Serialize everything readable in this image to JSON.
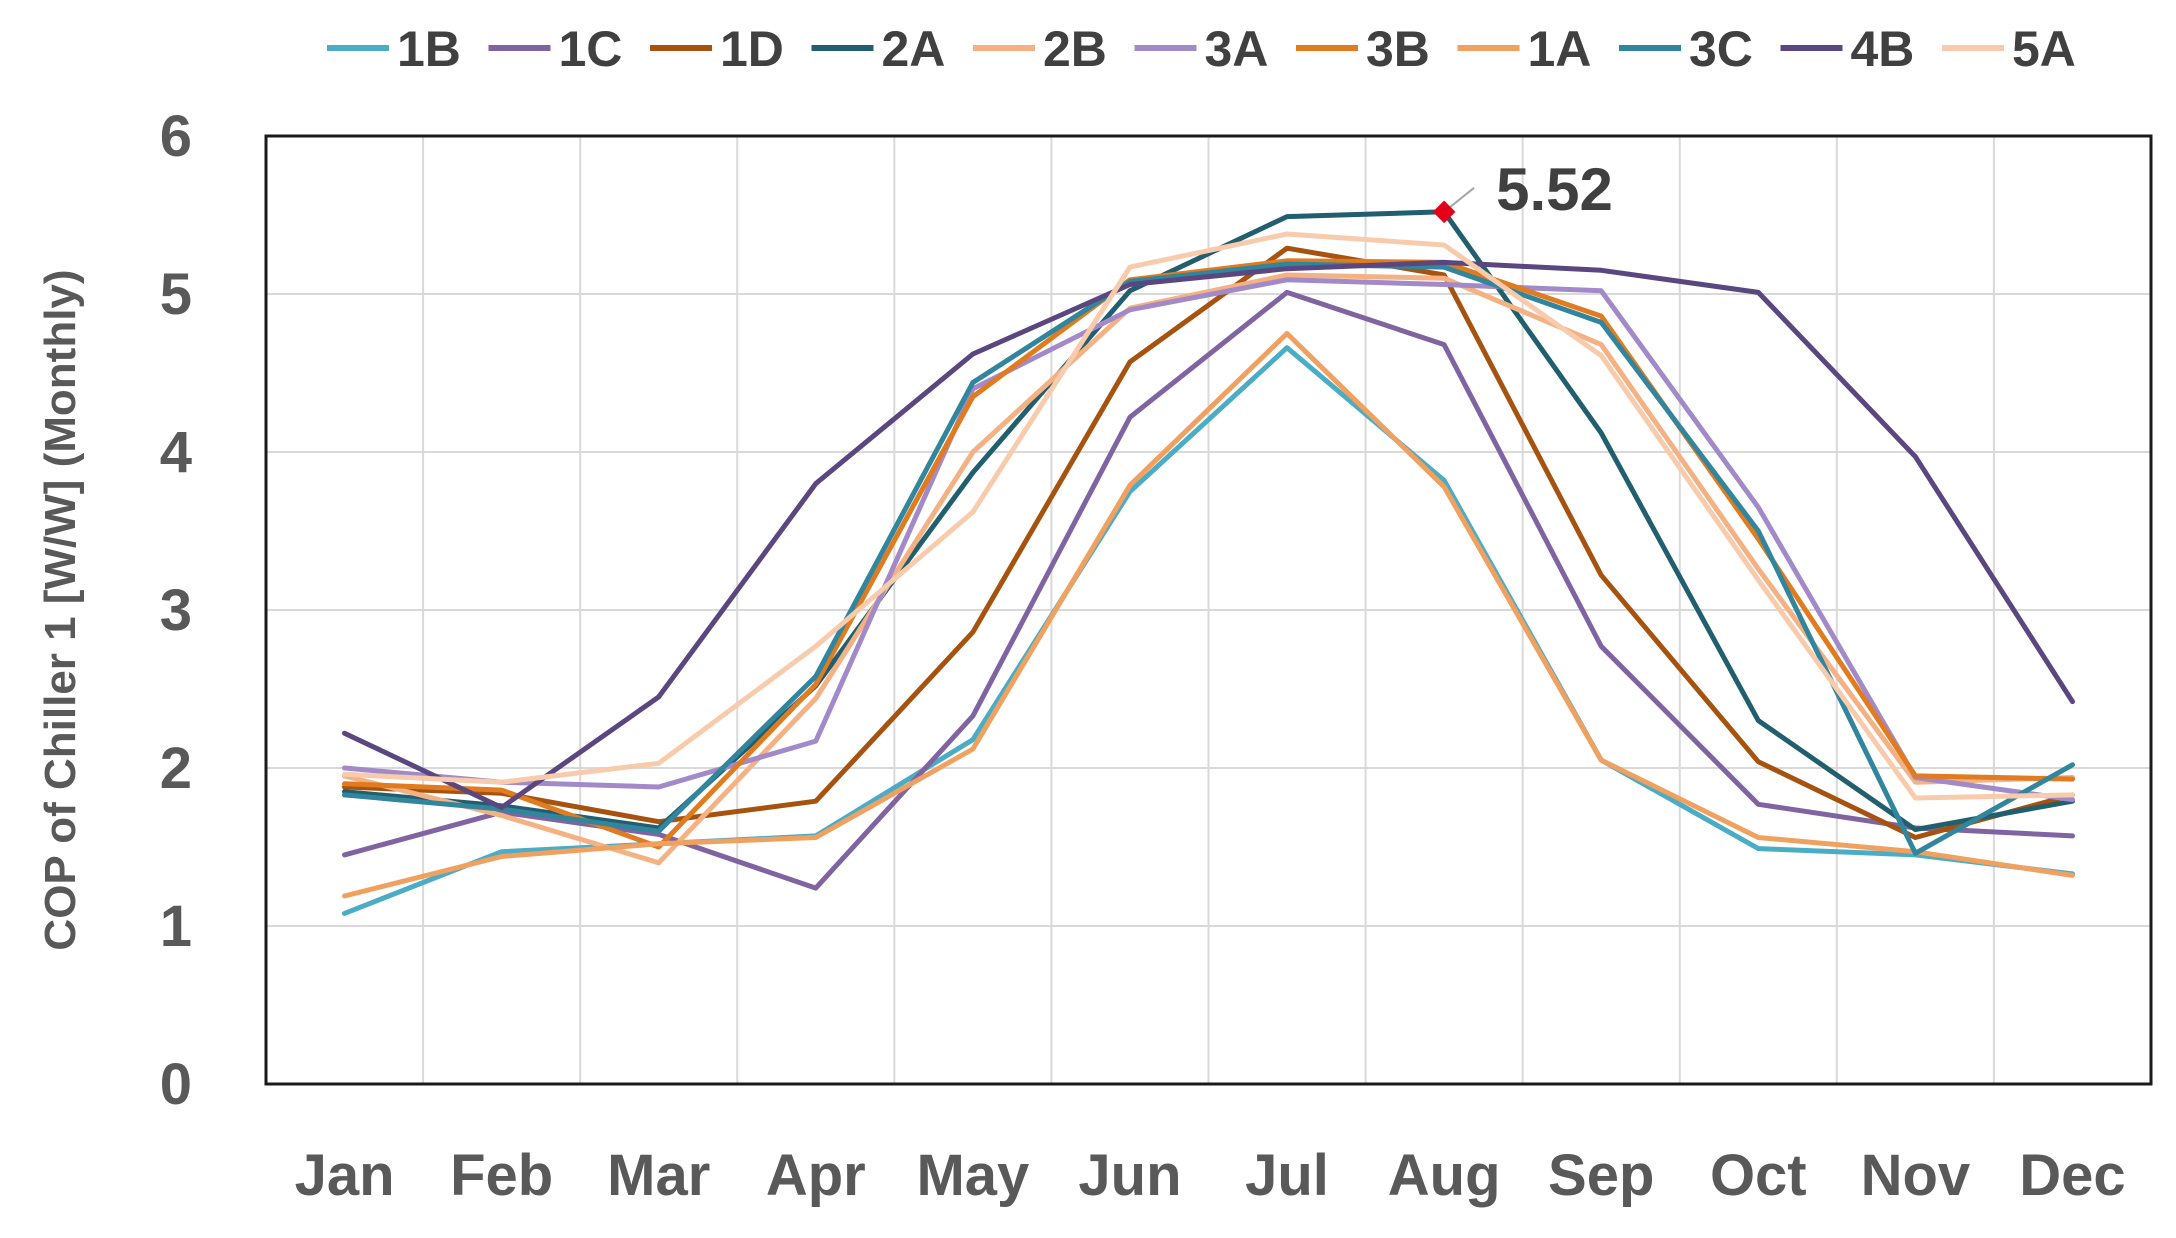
{
  "chart_data": {
    "type": "line",
    "title": "",
    "xlabel": "",
    "ylabel": "COP of Chiller 1   [W/W] (Monthly)",
    "ylim": [
      0,
      6
    ],
    "yticks": [
      "0",
      "1",
      "2",
      "3",
      "4",
      "5",
      "6"
    ],
    "grid": true,
    "legend_position": "top",
    "categories": [
      "Jan",
      "Feb",
      "Mar",
      "Apr",
      "May",
      "Jun",
      "Jul",
      "Aug",
      "Sep",
      "Oct",
      "Nov",
      "Dec"
    ],
    "series": [
      {
        "name": "1B",
        "color": "#4BACC6",
        "values": [
          1.08,
          1.47,
          1.52,
          1.57,
          2.18,
          3.75,
          4.66,
          3.82,
          2.05,
          1.49,
          1.45,
          1.33
        ]
      },
      {
        "name": "1C",
        "color": "#8064A2",
        "values": [
          1.45,
          1.72,
          1.58,
          1.24,
          2.33,
          4.22,
          5.01,
          4.68,
          2.77,
          1.77,
          1.62,
          1.57
        ]
      },
      {
        "name": "1D",
        "color": "#A6530F",
        "values": [
          1.88,
          1.84,
          1.66,
          1.79,
          2.86,
          4.57,
          5.29,
          5.12,
          3.22,
          2.04,
          1.56,
          1.83
        ]
      },
      {
        "name": "2A",
        "color": "#215E6E",
        "values": [
          1.85,
          1.76,
          1.62,
          2.52,
          3.87,
          5.02,
          5.49,
          5.52,
          4.12,
          2.3,
          1.61,
          1.79
        ]
      },
      {
        "name": "2B",
        "color": "#F4B183",
        "values": [
          1.95,
          1.7,
          1.4,
          2.44,
          4.0,
          4.91,
          5.12,
          5.1,
          4.68,
          3.26,
          1.91,
          1.94
        ]
      },
      {
        "name": "3A",
        "color": "#A18AC7",
        "values": [
          2.0,
          1.91,
          1.88,
          2.17,
          4.4,
          4.9,
          5.09,
          5.06,
          5.02,
          3.65,
          1.94,
          1.8
        ]
      },
      {
        "name": "3B",
        "color": "#E07B1F",
        "values": [
          1.9,
          1.86,
          1.5,
          2.53,
          4.35,
          5.09,
          5.21,
          5.2,
          4.86,
          3.45,
          1.95,
          1.93
        ]
      },
      {
        "name": "1A",
        "color": "#F0A15F",
        "values": [
          1.19,
          1.44,
          1.52,
          1.56,
          2.12,
          3.79,
          4.75,
          3.78,
          2.05,
          1.56,
          1.47,
          1.32
        ]
      },
      {
        "name": "3C",
        "color": "#31859C",
        "values": [
          1.83,
          1.74,
          1.6,
          2.58,
          4.44,
          5.08,
          5.19,
          5.17,
          4.82,
          3.5,
          1.46,
          2.02
        ]
      },
      {
        "name": "4B",
        "color": "#5B4780",
        "values": [
          2.22,
          1.75,
          2.45,
          3.8,
          4.62,
          5.06,
          5.16,
          5.2,
          5.15,
          5.01,
          3.97,
          2.42
        ]
      },
      {
        "name": "5A",
        "color": "#F8CBAD",
        "values": [
          1.96,
          1.91,
          2.03,
          2.77,
          3.62,
          5.17,
          5.38,
          5.31,
          4.61,
          3.19,
          1.81,
          1.83
        ]
      }
    ],
    "annotations": [
      {
        "text": "5.52",
        "x": "Aug",
        "y": 5.52,
        "marker_color": "#E3001B"
      }
    ]
  }
}
